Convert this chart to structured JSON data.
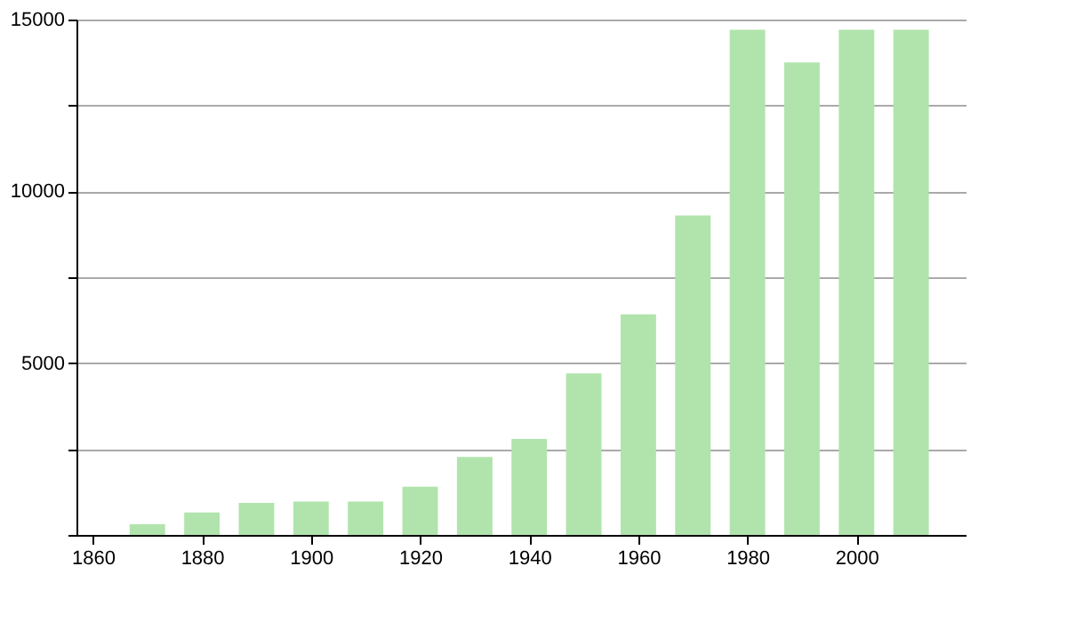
{
  "chart_data": {
    "type": "bar",
    "x": [
      1870,
      1880,
      1890,
      1900,
      1910,
      1920,
      1930,
      1940,
      1950,
      1960,
      1970,
      1980,
      1990,
      2000,
      2010
    ],
    "values": [
      310,
      650,
      930,
      970,
      970,
      1400,
      2270,
      2790,
      4700,
      6420,
      9300,
      14700,
      13750,
      14700,
      14700
    ],
    "color": "#b0e4ac",
    "xlim": [
      1857,
      2020
    ],
    "xticks": [
      1860,
      1880,
      1900,
      1920,
      1940,
      1960,
      1980,
      2000
    ],
    "ylim": [
      0,
      15000
    ],
    "yticks": [
      {
        "value": 0,
        "label": null
      },
      {
        "value": 2500,
        "label": null
      },
      5000,
      {
        "value": 7500,
        "label": null
      },
      10000,
      {
        "value": 12500,
        "label": null
      },
      15000
    ],
    "grid": "y"
  }
}
